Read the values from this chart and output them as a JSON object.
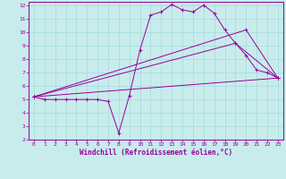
{
  "xlabel": "Windchill (Refroidissement éolien,°C)",
  "background_color": "#c8ecec",
  "grid_color": "#aadddd",
  "line_color": "#990099",
  "xlim": [
    -0.5,
    23.5
  ],
  "ylim": [
    2,
    12.3
  ],
  "yticks": [
    2,
    3,
    4,
    5,
    6,
    7,
    8,
    9,
    10,
    11,
    12
  ],
  "xticks": [
    0,
    1,
    2,
    3,
    4,
    5,
    6,
    7,
    8,
    9,
    10,
    11,
    12,
    13,
    14,
    15,
    16,
    17,
    18,
    19,
    20,
    21,
    22,
    23
  ],
  "line1_x": [
    0,
    1,
    2,
    3,
    4,
    5,
    6,
    7,
    8,
    9,
    10,
    11,
    12,
    13,
    14,
    15,
    16,
    17,
    18,
    19,
    20,
    21,
    22,
    23
  ],
  "line1_y": [
    5.2,
    5.0,
    5.0,
    5.0,
    5.0,
    5.0,
    5.0,
    4.85,
    2.5,
    5.3,
    8.7,
    11.3,
    11.55,
    12.1,
    11.7,
    11.55,
    12.05,
    11.45,
    10.2,
    9.2,
    8.3,
    7.2,
    7.0,
    6.6
  ],
  "line2_x": [
    0,
    23
  ],
  "line2_y": [
    5.2,
    6.6
  ],
  "line3_x": [
    0,
    19,
    23
  ],
  "line3_y": [
    5.2,
    9.2,
    6.6
  ],
  "line4_x": [
    0,
    20,
    23
  ],
  "line4_y": [
    5.2,
    10.2,
    6.6
  ]
}
